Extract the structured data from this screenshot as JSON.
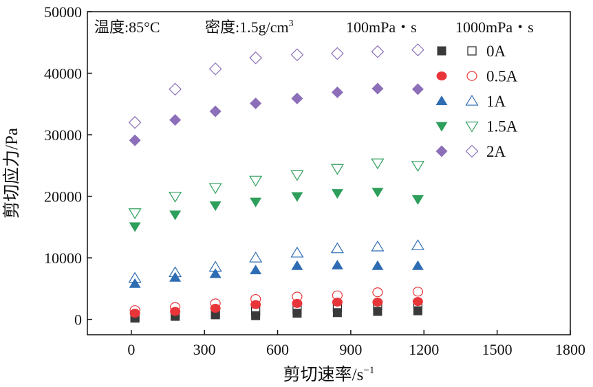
{
  "chart_data": {
    "type": "scatter",
    "xlabel": "剪切速率/s",
    "xlabel_sup": "−1",
    "ylabel": "剪切应力/Pa",
    "xlim": [
      -180,
      1800
    ],
    "ylim": [
      -2500,
      50000
    ],
    "xticks": [
      0,
      300,
      600,
      900,
      1200,
      1500,
      1800
    ],
    "yticks": [
      0,
      10000,
      20000,
      30000,
      40000,
      50000
    ],
    "annotation": {
      "temperature": "温度:85°C",
      "density": "密度:1.5g/cm",
      "density_sup": "3"
    },
    "legend_headers": [
      "100mPa・s",
      "1000mPa・s"
    ],
    "x": [
      15,
      180,
      345,
      510,
      680,
      845,
      1010,
      1175
    ],
    "series": [
      {
        "name": "0A",
        "color": "#3a3a3a",
        "marker": "square",
        "values_100": [
          200,
          500,
          750,
          600,
          1000,
          1100,
          1300,
          1400
        ],
        "values_1000": [
          300,
          700,
          900,
          1300,
          1600,
          1900,
          2200,
          2500
        ]
      },
      {
        "name": "0.5A",
        "color": "#e8353a",
        "marker": "circle",
        "values_100": [
          1000,
          1300,
          1800,
          2400,
          2600,
          2800,
          2800,
          2900
        ],
        "values_1000": [
          1500,
          2000,
          2600,
          3300,
          3700,
          3900,
          4400,
          4500
        ]
      },
      {
        "name": "1A",
        "color": "#2e6db4",
        "marker": "triangle-up",
        "values_100": [
          5800,
          6800,
          7400,
          8000,
          8700,
          8800,
          8700,
          8700
        ],
        "values_1000": [
          6700,
          7600,
          8500,
          10000,
          10800,
          11500,
          11800,
          12000
        ]
      },
      {
        "name": "1.5A",
        "color": "#2e9e5b",
        "marker": "triangle-down",
        "values_100": [
          15100,
          17000,
          18500,
          19100,
          20000,
          20500,
          20700,
          19500
        ],
        "values_1000": [
          17300,
          20000,
          21400,
          22600,
          23500,
          24500,
          25400,
          25000
        ]
      },
      {
        "name": "2A",
        "color": "#8c6fb8",
        "marker": "diamond",
        "values_100": [
          29100,
          32400,
          33800,
          35100,
          35900,
          36900,
          37500,
          37400
        ],
        "values_1000": [
          32000,
          37400,
          40700,
          42500,
          43000,
          43200,
          43500,
          43800
        ]
      }
    ]
  }
}
